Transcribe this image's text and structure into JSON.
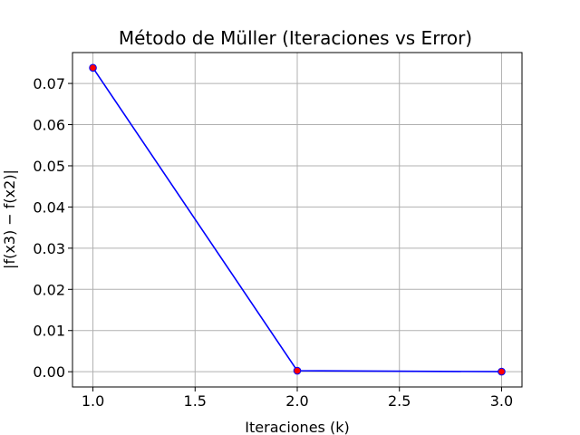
{
  "chart_data": {
    "type": "line",
    "title": "Método de Müller (Iteraciones vs Error)",
    "xlabel": "Iteraciones (k)",
    "ylabel": "|f(x3) − f(x2)|",
    "x": [
      1.0,
      2.0,
      3.0
    ],
    "series": [
      {
        "values": [
          0.0738,
          0.00025,
          2e-05
        ]
      }
    ],
    "xlim": [
      0.9,
      3.1
    ],
    "ylim": [
      -0.0037,
      0.0775
    ],
    "xticks": [
      1.0,
      1.5,
      2.0,
      2.5,
      3.0
    ],
    "xtick_labels": [
      "1.0",
      "1.5",
      "2.0",
      "2.5",
      "3.0"
    ],
    "yticks": [
      0.0,
      0.01,
      0.02,
      0.03,
      0.04,
      0.05,
      0.06,
      0.07
    ],
    "ytick_labels": [
      "0.00",
      "0.01",
      "0.02",
      "0.03",
      "0.04",
      "0.05",
      "0.06",
      "0.07"
    ],
    "grid": true,
    "line_color": "#0000ff",
    "marker_face_color": "#ff0000",
    "marker_edge_color": "#0000ff"
  }
}
